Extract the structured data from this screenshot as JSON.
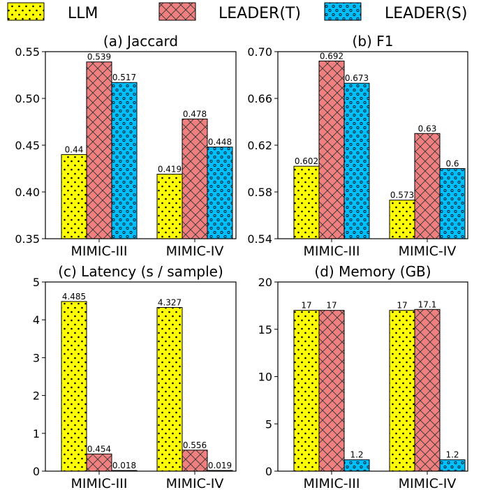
{
  "legend": [
    {
      "label": "LLM",
      "color": "#ffff00",
      "pattern": "dots"
    },
    {
      "label": "LEADER(T)",
      "color": "#f08080",
      "pattern": "cross"
    },
    {
      "label": "LEADER(S)",
      "color": "#00bfff",
      "pattern": "circles"
    }
  ],
  "chart_data": [
    {
      "type": "bar",
      "title": "(a) Jaccard",
      "categories": [
        "MIMIC-III",
        "MIMIC-IV"
      ],
      "ylim": [
        0.35,
        0.55
      ],
      "yticks": [
        "0.35",
        "0.40",
        "0.45",
        "0.50",
        "0.55"
      ],
      "series": [
        {
          "name": "LLM",
          "values": [
            0.44,
            0.419
          ],
          "labels": [
            "0.44",
            "0.419"
          ]
        },
        {
          "name": "LEADER(T)",
          "values": [
            0.539,
            0.478
          ],
          "labels": [
            "0.539",
            "0.478"
          ]
        },
        {
          "name": "LEADER(S)",
          "values": [
            0.517,
            0.448
          ],
          "labels": [
            "0.517",
            "0.448"
          ]
        }
      ]
    },
    {
      "type": "bar",
      "title": "(b) F1",
      "categories": [
        "MIMIC-III",
        "MIMIC-IV"
      ],
      "ylim": [
        0.54,
        0.7
      ],
      "yticks": [
        "0.54",
        "0.58",
        "0.62",
        "0.66",
        "0.70"
      ],
      "series": [
        {
          "name": "LLM",
          "values": [
            0.602,
            0.573
          ],
          "labels": [
            "0.602",
            "0.573"
          ]
        },
        {
          "name": "LEADER(T)",
          "values": [
            0.692,
            0.63
          ],
          "labels": [
            "0.692",
            "0.63"
          ]
        },
        {
          "name": "LEADER(S)",
          "values": [
            0.673,
            0.6
          ],
          "labels": [
            "0.673",
            "0.6"
          ]
        }
      ]
    },
    {
      "type": "bar",
      "title": "(c) Latency (s / sample)",
      "categories": [
        "MIMIC-III",
        "MIMIC-IV"
      ],
      "ylim": [
        0,
        5
      ],
      "yticks": [
        "0",
        "1",
        "2",
        "3",
        "4",
        "5"
      ],
      "series": [
        {
          "name": "LLM",
          "values": [
            4.485,
            4.327
          ],
          "labels": [
            "4.485",
            "4.327"
          ]
        },
        {
          "name": "LEADER(T)",
          "values": [
            0.454,
            0.556
          ],
          "labels": [
            "0.454",
            "0.556"
          ]
        },
        {
          "name": "LEADER(S)",
          "values": [
            0.018,
            0.019
          ],
          "labels": [
            "0.018",
            "0.019"
          ]
        }
      ]
    },
    {
      "type": "bar",
      "title": "(d) Memory (GB)",
      "categories": [
        "MIMIC-III",
        "MIMIC-IV"
      ],
      "ylim": [
        0,
        20
      ],
      "yticks": [
        "0",
        "5",
        "10",
        "15",
        "20"
      ],
      "series": [
        {
          "name": "LLM",
          "values": [
            17,
            17
          ],
          "labels": [
            "17",
            "17"
          ]
        },
        {
          "name": "LEADER(T)",
          "values": [
            17,
            17.1
          ],
          "labels": [
            "17",
            "17.1"
          ]
        },
        {
          "name": "LEADER(S)",
          "values": [
            1.2,
            1.2
          ],
          "labels": [
            "1.2",
            "1.2"
          ]
        }
      ]
    }
  ]
}
